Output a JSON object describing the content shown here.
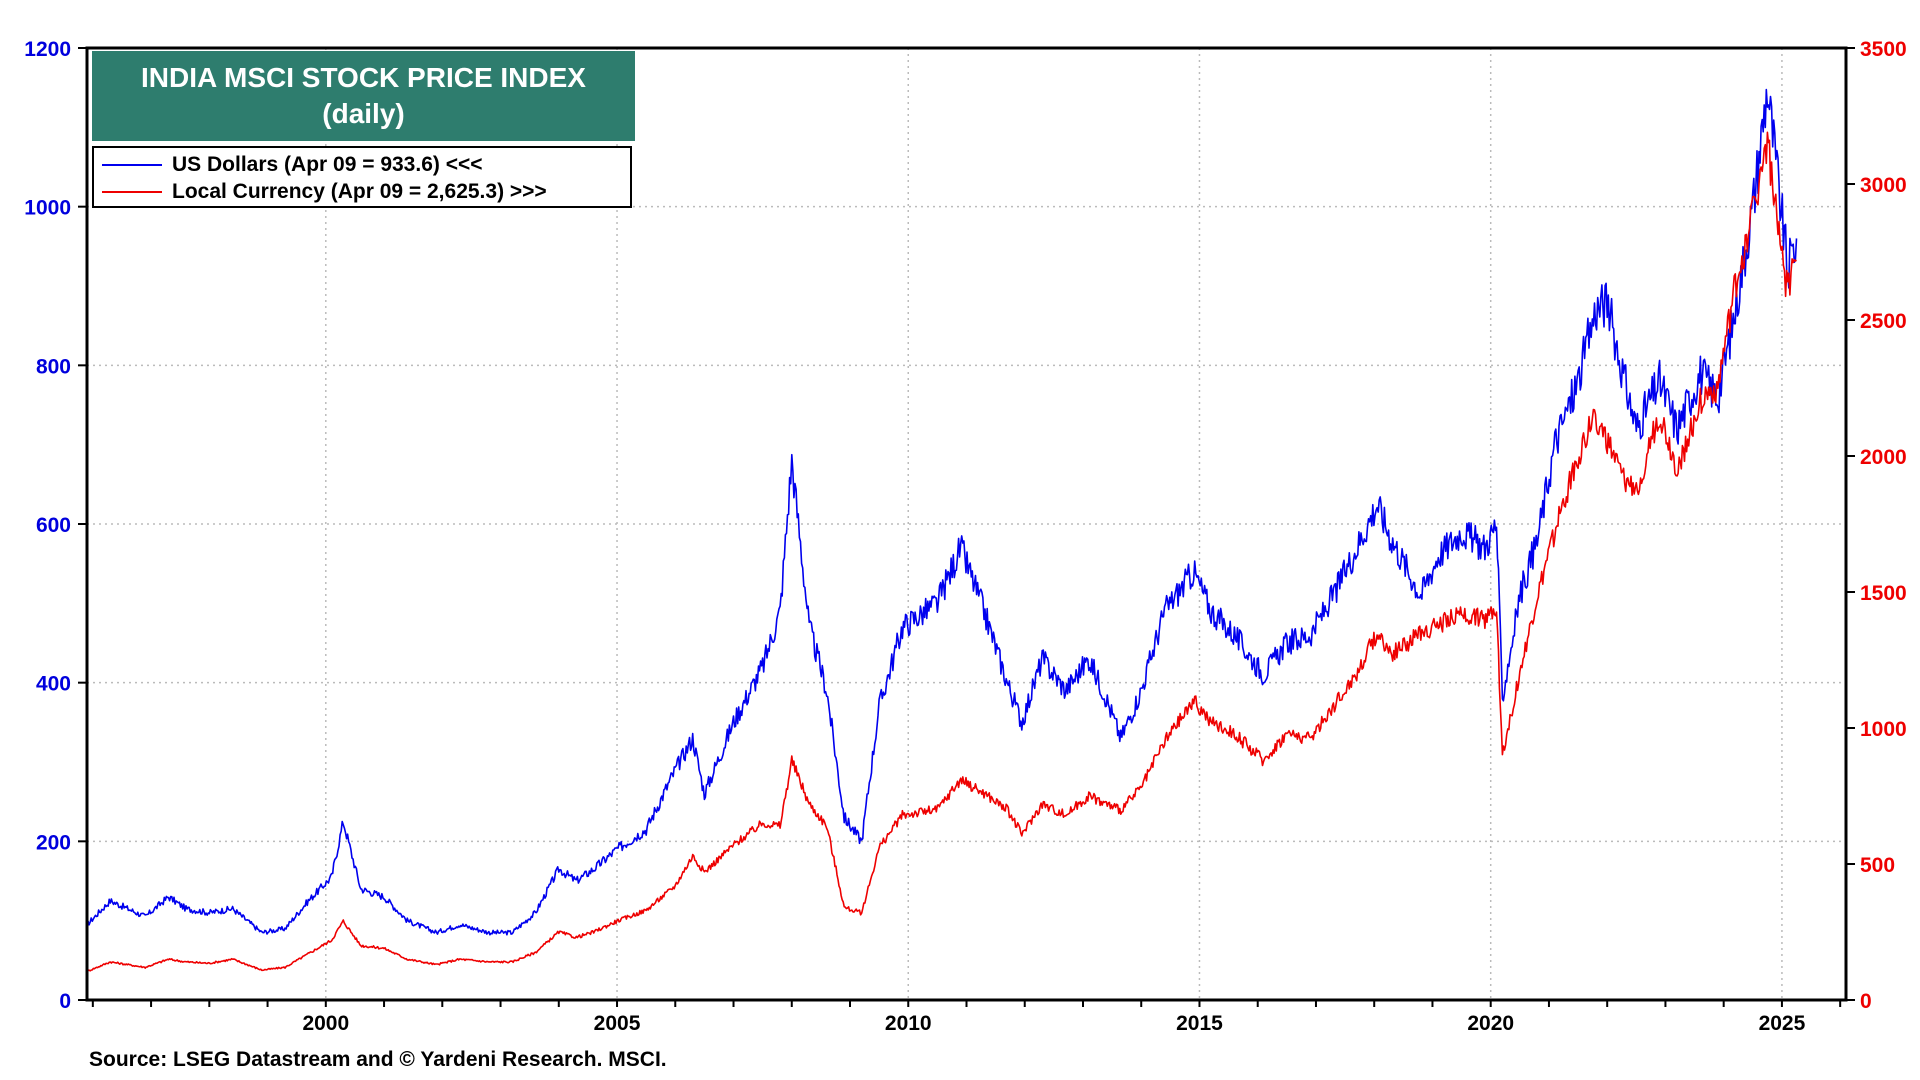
{
  "chart_data": {
    "type": "line",
    "title": "INDIA MSCI STOCK PRICE INDEX",
    "subtitle": "(daily)",
    "source": "Source: LSEG Datastream and © Yardeni Research. MSCI.",
    "x_ticks": [
      "2000",
      "2005",
      "2010",
      "2015",
      "2020",
      "2025"
    ],
    "x_range": [
      1995.9,
      2026.1
    ],
    "y_left": {
      "ticks": [
        "0",
        "200",
        "400",
        "600",
        "800",
        "1000",
        "1200"
      ],
      "range": [
        0,
        1200
      ],
      "color": "#0000dd"
    },
    "y_right": {
      "ticks": [
        "0",
        "500",
        "1000",
        "1500",
        "2000",
        "2500",
        "3000",
        "3500"
      ],
      "range": [
        0,
        3500
      ],
      "color": "#ee0000"
    },
    "grid": true,
    "legend_position": "top-left",
    "series": [
      {
        "name": "US Dollars (Apr 09 = 933.6) <<<",
        "axis": "left",
        "color": "#0000ee",
        "x": [
          1995.9,
          1996.3,
          1996.9,
          1997.3,
          1997.6,
          1998.0,
          1998.4,
          1998.9,
          1999.3,
          1999.7,
          2000.1,
          2000.3,
          2000.6,
          2001.0,
          2001.4,
          2001.9,
          2002.3,
          2002.8,
          2003.2,
          2003.6,
          2004.0,
          2004.3,
          2004.6,
          2005.0,
          2005.5,
          2006.0,
          2006.3,
          2006.5,
          2007.0,
          2007.5,
          2007.8,
          2008.0,
          2008.3,
          2008.6,
          2008.9,
          2009.2,
          2009.5,
          2009.9,
          2010.5,
          2010.9,
          2011.3,
          2011.7,
          2011.95,
          2012.3,
          2012.7,
          2013.1,
          2013.4,
          2013.65,
          2014.0,
          2014.4,
          2014.9,
          2015.2,
          2015.6,
          2016.1,
          2016.5,
          2016.9,
          2017.3,
          2017.7,
          2018.05,
          2018.3,
          2018.8,
          2019.1,
          2019.5,
          2019.9,
          2020.1,
          2020.2,
          2020.5,
          2020.8,
          2021.1,
          2021.5,
          2021.8,
          2022.0,
          2022.3,
          2022.5,
          2022.9,
          2023.2,
          2023.6,
          2023.9,
          2024.2,
          2024.5,
          2024.75,
          2024.95,
          2025.1,
          2025.25
        ],
        "y": [
          95,
          125,
          105,
          130,
          115,
          110,
          115,
          85,
          90,
          125,
          155,
          225,
          140,
          130,
          100,
          85,
          95,
          85,
          85,
          110,
          165,
          150,
          165,
          190,
          215,
          290,
          330,
          260,
          350,
          420,
          490,
          680,
          470,
          390,
          230,
          200,
          370,
          470,
          500,
          570,
          490,
          400,
          350,
          430,
          390,
          430,
          380,
          330,
          390,
          490,
          540,
          490,
          460,
          410,
          450,
          460,
          510,
          570,
          625,
          580,
          510,
          560,
          590,
          570,
          600,
          380,
          510,
          580,
          700,
          780,
          870,
          880,
          780,
          720,
          780,
          720,
          790,
          760,
          870,
          1000,
          1150,
          1020,
          920,
          960
        ]
      },
      {
        "name": "Local Currency (Apr 09 = 2,625.3) >>>",
        "axis": "right",
        "color": "#ee0000",
        "x": [
          1995.9,
          1996.3,
          1996.9,
          1997.3,
          1997.6,
          1998.0,
          1998.4,
          1998.9,
          1999.3,
          1999.7,
          2000.1,
          2000.3,
          2000.6,
          2001.0,
          2001.4,
          2001.9,
          2002.3,
          2002.8,
          2003.2,
          2003.6,
          2004.0,
          2004.3,
          2004.6,
          2005.0,
          2005.5,
          2006.0,
          2006.3,
          2006.5,
          2007.0,
          2007.5,
          2007.8,
          2008.0,
          2008.3,
          2008.6,
          2008.9,
          2009.2,
          2009.5,
          2009.9,
          2010.5,
          2010.9,
          2011.3,
          2011.7,
          2011.95,
          2012.3,
          2012.7,
          2013.1,
          2013.4,
          2013.65,
          2014.0,
          2014.4,
          2014.9,
          2015.2,
          2015.6,
          2016.1,
          2016.5,
          2016.9,
          2017.3,
          2017.7,
          2018.05,
          2018.3,
          2018.8,
          2019.1,
          2019.5,
          2019.9,
          2020.1,
          2020.2,
          2020.5,
          2020.8,
          2021.1,
          2021.5,
          2021.8,
          2022.0,
          2022.3,
          2022.5,
          2022.9,
          2023.2,
          2023.6,
          2023.9,
          2024.2,
          2024.5,
          2024.75,
          2024.95,
          2025.1,
          2025.25
        ],
        "y": [
          105,
          140,
          120,
          150,
          140,
          135,
          150,
          110,
          120,
          170,
          220,
          290,
          200,
          190,
          150,
          130,
          150,
          140,
          140,
          175,
          250,
          230,
          250,
          290,
          330,
          420,
          530,
          470,
          570,
          650,
          640,
          880,
          720,
          640,
          340,
          320,
          560,
          680,
          700,
          810,
          760,
          700,
          610,
          720,
          680,
          750,
          720,
          700,
          780,
          950,
          1100,
          1020,
          980,
          880,
          980,
          960,
          1080,
          1200,
          1350,
          1270,
          1350,
          1380,
          1420,
          1400,
          1450,
          900,
          1200,
          1480,
          1720,
          2000,
          2150,
          2050,
          1900,
          1880,
          2150,
          1950,
          2200,
          2250,
          2620,
          2900,
          3160,
          2800,
          2600,
          2720
        ]
      }
    ]
  }
}
